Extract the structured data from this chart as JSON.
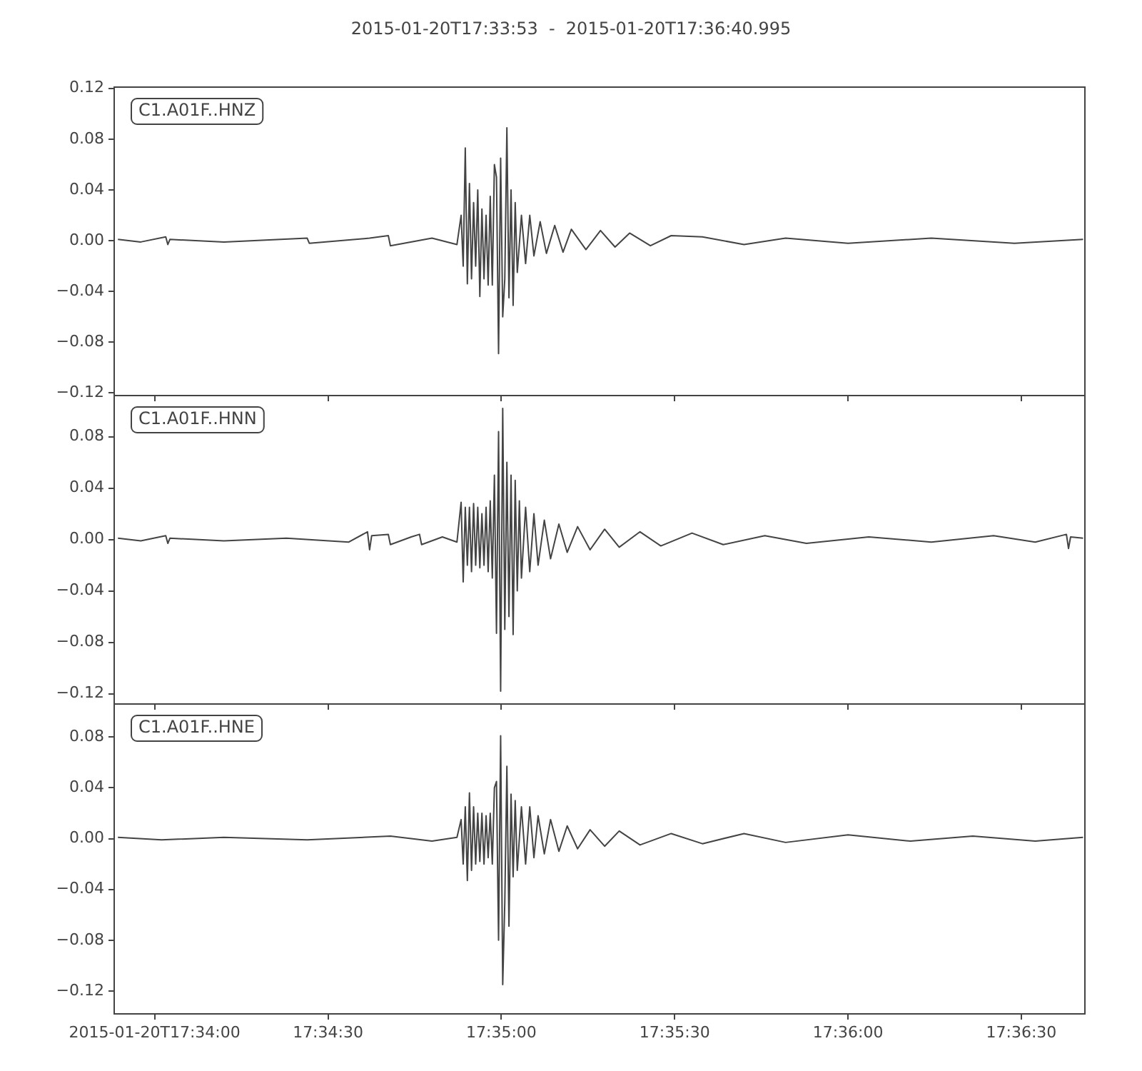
{
  "chart_data": [
    {
      "type": "line",
      "title": "2015-01-20T17:33:53  -  2015-01-20T17:36:40.995",
      "annotations": [
        "C1.A01F..HNZ"
      ],
      "color": "#444444",
      "legend": false,
      "tick_labels": "y",
      "xlim": [
        17.564722,
        17.611388
      ],
      "xticks": [
        {
          "value": 17.566667,
          "label": null
        },
        {
          "value": 17.575,
          "label": null
        },
        {
          "value": 17.583333,
          "label": null
        },
        {
          "value": 17.591667,
          "label": null
        },
        {
          "value": 17.6,
          "label": null
        },
        {
          "value": 17.608333,
          "label": null
        }
      ],
      "ylim": [
        -0.122,
        0.121
      ],
      "yticks": [
        {
          "value": -0.12,
          "label": "−0.12"
        },
        {
          "value": -0.08,
          "label": "−0.08"
        },
        {
          "value": -0.04,
          "label": "−0.04"
        },
        {
          "value": 0,
          "label": "0.00"
        },
        0.04,
        0.08,
        0.12
      ],
      "x": [
        17.5649,
        17.566,
        17.5672,
        17.5673,
        17.5674,
        17.57,
        17.574,
        17.5741,
        17.577,
        17.5779,
        17.578,
        17.58,
        17.5812,
        17.5814,
        17.5815,
        17.5816,
        17.5817,
        17.5818,
        17.5819,
        17.582,
        17.5821,
        17.5822,
        17.5823,
        17.5824,
        17.5825,
        17.5826,
        17.5827,
        17.5828,
        17.5829,
        17.583,
        17.5831,
        17.5832,
        17.5833,
        17.5834,
        17.5835,
        17.5836,
        17.5837,
        17.5838,
        17.5839,
        17.584,
        17.5841,
        17.5843,
        17.5845,
        17.5847,
        17.5849,
        17.5852,
        17.5855,
        17.5859,
        17.5863,
        17.5867,
        17.5874,
        17.5881,
        17.5888,
        17.5895,
        17.5905,
        17.5915,
        17.593,
        17.595,
        17.597,
        17.6,
        17.604,
        17.608,
        17.6113
      ],
      "values": [
        0.001,
        -0.001,
        0.003,
        -0.003,
        0.001,
        -0.001,
        0.002,
        -0.002,
        0.002,
        0.004,
        -0.004,
        0.002,
        -0.003,
        0.02,
        -0.02,
        0.073,
        -0.034,
        0.045,
        -0.03,
        0.03,
        -0.02,
        0.04,
        -0.044,
        0.025,
        -0.03,
        0.02,
        -0.035,
        0.035,
        -0.035,
        0.06,
        0.05,
        -0.089,
        0.065,
        -0.06,
        -0.03,
        0.089,
        -0.045,
        0.04,
        -0.051,
        0.03,
        -0.025,
        0.02,
        -0.018,
        0.02,
        -0.012,
        0.015,
        -0.01,
        0.012,
        -0.009,
        0.009,
        -0.007,
        0.008,
        -0.005,
        0.006,
        -0.004,
        0.004,
        0.003,
        -0.003,
        0.002,
        -0.002,
        0.002,
        -0.002,
        0.001
      ]
    },
    {
      "type": "line",
      "annotations": [
        "C1.A01F..HNN"
      ],
      "color": "#444444",
      "legend": false,
      "tick_labels": "y",
      "xlim": [
        17.564722,
        17.611388
      ],
      "xticks": [
        {
          "value": 17.566667,
          "label": null
        },
        {
          "value": 17.575,
          "label": null
        },
        {
          "value": 17.583333,
          "label": null
        },
        {
          "value": 17.591667,
          "label": null
        },
        {
          "value": 17.6,
          "label": null
        },
        {
          "value": 17.608333,
          "label": null
        }
      ],
      "ylim": [
        -0.128,
        0.112
      ],
      "yticks": [
        {
          "value": -0.12,
          "label": "−0.12"
        },
        {
          "value": -0.08,
          "label": "−0.08"
        },
        {
          "value": -0.04,
          "label": "−0.04"
        },
        {
          "value": 0,
          "label": "0.00"
        },
        0.04,
        0.08
      ],
      "x": [
        17.5649,
        17.566,
        17.5672,
        17.5673,
        17.5674,
        17.57,
        17.573,
        17.576,
        17.5769,
        17.577,
        17.5771,
        17.5779,
        17.578,
        17.579,
        17.5794,
        17.5795,
        17.5805,
        17.5812,
        17.5814,
        17.5815,
        17.5816,
        17.5817,
        17.5818,
        17.5819,
        17.582,
        17.5821,
        17.5822,
        17.5823,
        17.5824,
        17.5825,
        17.5826,
        17.5827,
        17.5828,
        17.5829,
        17.583,
        17.5831,
        17.5832,
        17.5833,
        17.5834,
        17.5835,
        17.5836,
        17.5837,
        17.5838,
        17.5839,
        17.584,
        17.5841,
        17.5842,
        17.5843,
        17.5845,
        17.5847,
        17.5849,
        17.5851,
        17.5854,
        17.5857,
        17.5861,
        17.5865,
        17.587,
        17.5876,
        17.5883,
        17.589,
        17.59,
        17.591,
        17.5925,
        17.594,
        17.596,
        17.598,
        17.601,
        17.604,
        17.607,
        17.609,
        17.6105,
        17.6106,
        17.6107,
        17.6113
      ],
      "values": [
        0.001,
        -0.001,
        0.003,
        -0.003,
        0.001,
        -0.001,
        0.001,
        -0.002,
        0.006,
        -0.008,
        0.003,
        0.004,
        -0.004,
        0.002,
        0.004,
        -0.004,
        0.002,
        -0.002,
        0.029,
        -0.033,
        0.025,
        -0.02,
        0.025,
        -0.025,
        0.028,
        -0.02,
        0.025,
        -0.022,
        0.02,
        -0.02,
        0.025,
        -0.025,
        0.03,
        -0.03,
        0.05,
        -0.073,
        0.084,
        -0.118,
        0.102,
        -0.07,
        0.06,
        -0.06,
        0.05,
        -0.074,
        0.046,
        -0.04,
        0.03,
        -0.03,
        0.025,
        -0.025,
        0.02,
        -0.02,
        0.015,
        -0.015,
        0.012,
        -0.01,
        0.01,
        -0.008,
        0.008,
        -0.006,
        0.006,
        -0.005,
        0.005,
        -0.004,
        0.003,
        -0.003,
        0.002,
        -0.002,
        0.003,
        -0.002,
        0.004,
        -0.007,
        0.002,
        0.001
      ]
    },
    {
      "type": "line",
      "annotations": [
        "C1.A01F..HNE"
      ],
      "color": "#444444",
      "legend": false,
      "xlim": [
        17.564722,
        17.611388
      ],
      "xticks": [
        {
          "value": 17.566667,
          "label": "2015-01-20T17:34:00"
        },
        {
          "value": 17.575,
          "label": "17:34:30"
        },
        {
          "value": 17.583333,
          "label": "17:35:00"
        },
        {
          "value": 17.591667,
          "label": "17:35:30"
        },
        {
          "value": 17.6,
          "label": "17:36:00"
        },
        {
          "value": 17.608333,
          "label": "17:36:30"
        }
      ],
      "ylim": [
        -0.138,
        0.106
      ],
      "yticks": [
        {
          "value": -0.12,
          "label": "−0.12"
        },
        {
          "value": -0.08,
          "label": "−0.08"
        },
        {
          "value": -0.04,
          "label": "−0.04"
        },
        {
          "value": 0,
          "label": "0.00"
        },
        0.04,
        0.08
      ],
      "x": [
        17.5649,
        17.567,
        17.57,
        17.574,
        17.578,
        17.58,
        17.5812,
        17.5814,
        17.5815,
        17.5816,
        17.5817,
        17.5818,
        17.5819,
        17.582,
        17.5821,
        17.5822,
        17.5823,
        17.5824,
        17.5825,
        17.5826,
        17.5827,
        17.5828,
        17.5829,
        17.583,
        17.5831,
        17.5832,
        17.5833,
        17.5834,
        17.5835,
        17.5836,
        17.5837,
        17.5838,
        17.5839,
        17.584,
        17.5841,
        17.5843,
        17.5845,
        17.5847,
        17.5849,
        17.5851,
        17.5854,
        17.5857,
        17.5861,
        17.5865,
        17.587,
        17.5876,
        17.5883,
        17.589,
        17.59,
        17.5915,
        17.593,
        17.595,
        17.597,
        17.6,
        17.603,
        17.606,
        17.609,
        17.6113
      ],
      "values": [
        0.001,
        -0.001,
        0.001,
        -0.001,
        0.002,
        -0.002,
        0.001,
        0.015,
        -0.02,
        0.025,
        -0.033,
        0.036,
        -0.025,
        0.025,
        -0.02,
        0.02,
        -0.018,
        0.02,
        -0.02,
        0.018,
        -0.015,
        0.02,
        -0.02,
        0.04,
        0.045,
        -0.08,
        0.081,
        -0.115,
        -0.05,
        0.057,
        -0.069,
        0.035,
        -0.03,
        0.03,
        -0.025,
        0.025,
        -0.02,
        0.025,
        -0.015,
        0.018,
        -0.012,
        0.015,
        -0.01,
        0.01,
        -0.008,
        0.007,
        -0.006,
        0.006,
        -0.005,
        0.004,
        -0.004,
        0.004,
        -0.003,
        0.003,
        -0.002,
        0.002,
        -0.002,
        0.001
      ]
    }
  ]
}
